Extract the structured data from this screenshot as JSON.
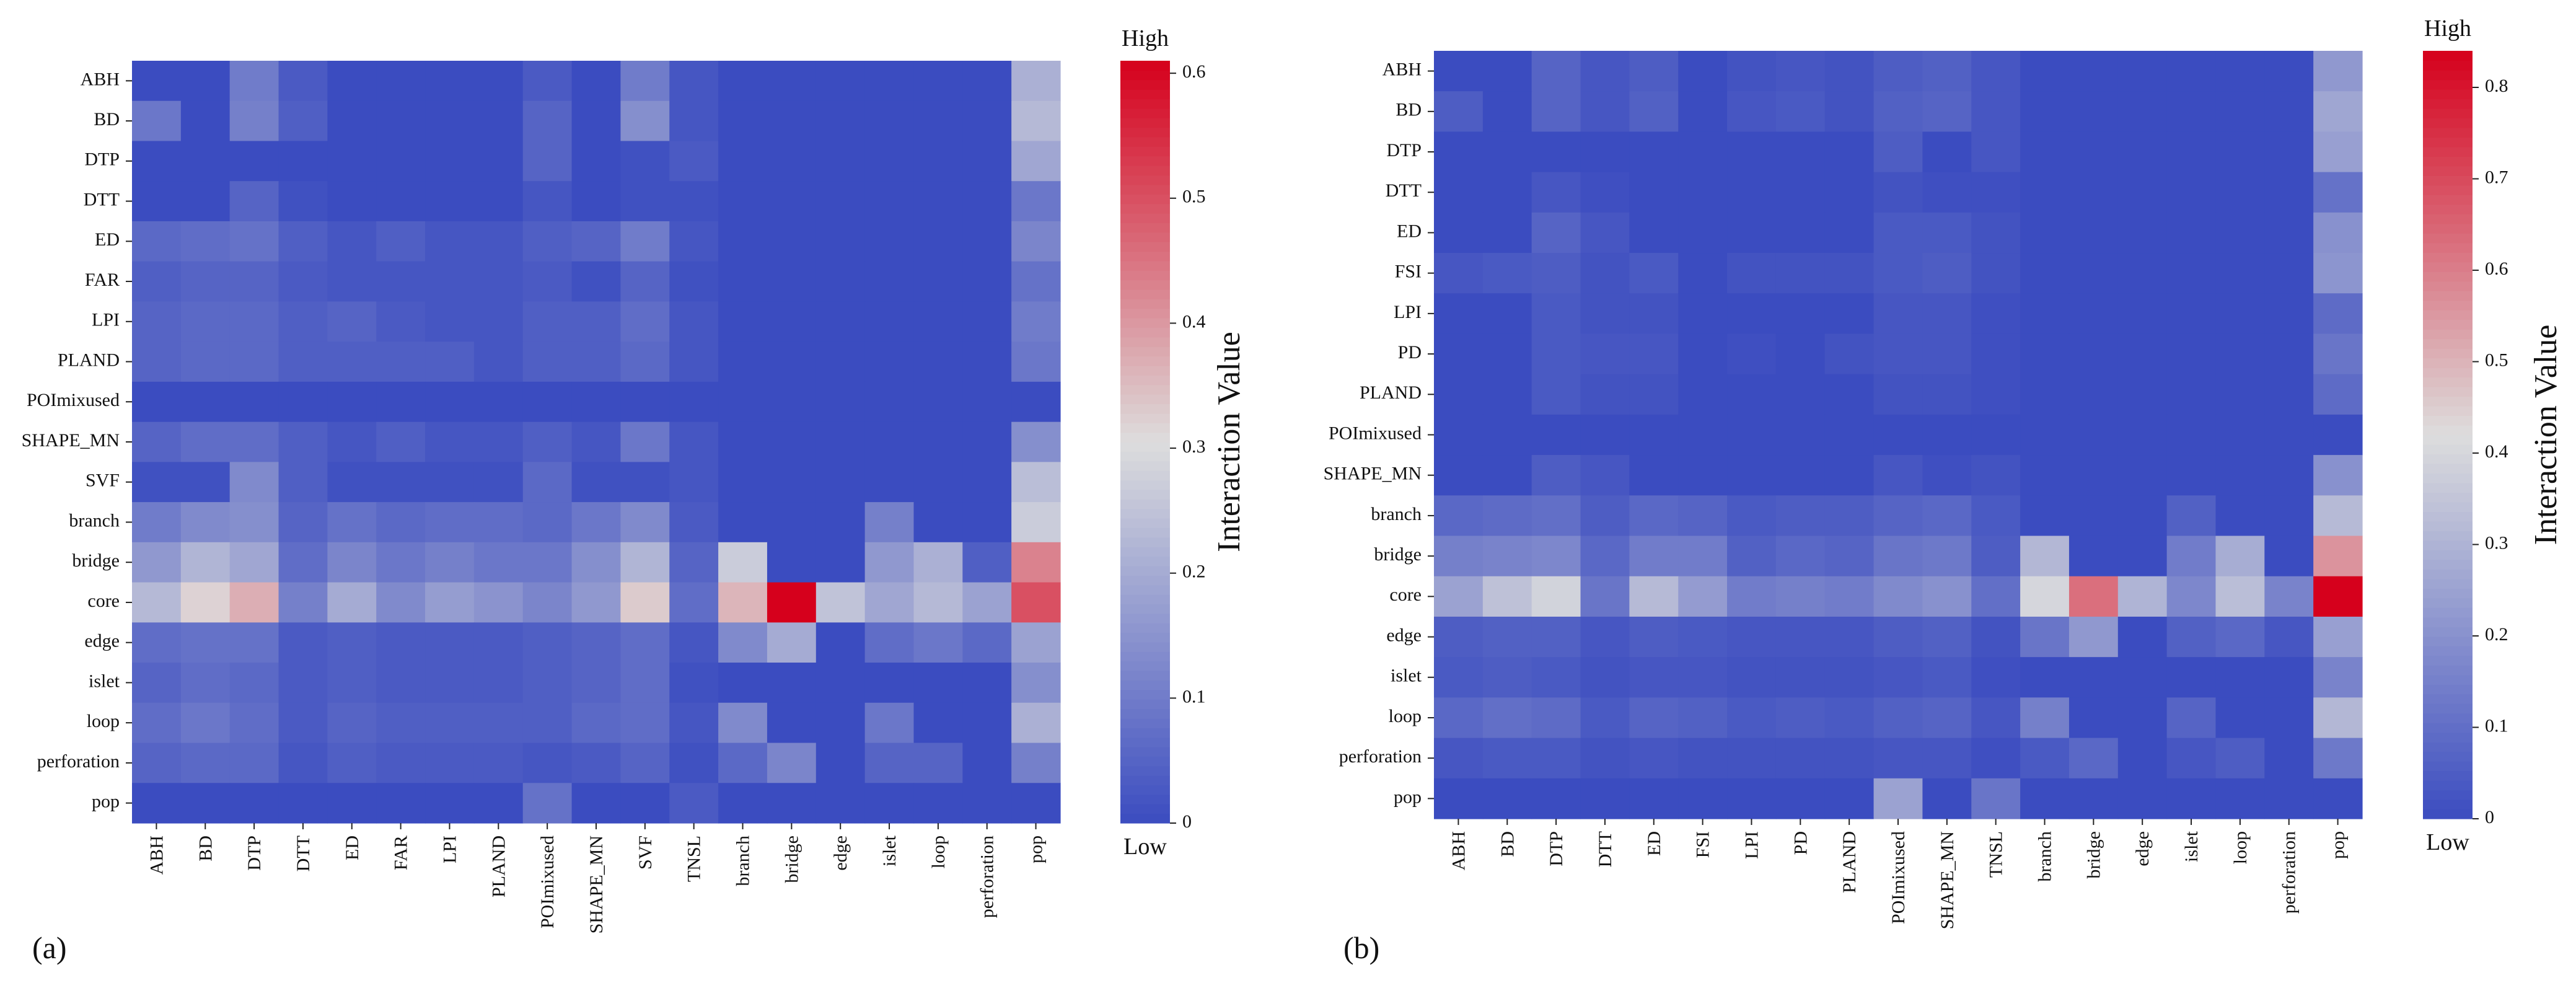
{
  "figure": {
    "panel_labels": [
      "(a)",
      "(b)"
    ]
  },
  "colors": {
    "low": "#3b4cc0",
    "mid": "#dddddd",
    "high": "#d6001c"
  },
  "chart_data": [
    {
      "type": "heatmap",
      "panel": "(a)",
      "rows": [
        "ABH",
        "BD",
        "DTP",
        "DTT",
        "ED",
        "FAR",
        "LPI",
        "PLAND",
        "POImixused",
        "SHAPE_MN",
        "SVF",
        "branch",
        "bridge",
        "core",
        "edge",
        "islet",
        "loop",
        "perforation",
        "pop"
      ],
      "columns": [
        "ABH",
        "BD",
        "DTP",
        "DTT",
        "ED",
        "FAR",
        "LPI",
        "PLAND",
        "POImixused",
        "SHAPE_MN",
        "SVF",
        "TNSL",
        "branch",
        "bridge",
        "edge",
        "islet",
        "loop",
        "perforation",
        "pop"
      ],
      "values": [
        [
          0,
          0,
          0.1,
          0.03,
          0,
          0,
          0,
          0,
          0.03,
          0,
          0.1,
          0.02,
          0,
          0,
          0,
          0,
          0,
          0,
          0.21
        ],
        [
          0.09,
          0,
          0.11,
          0.04,
          0,
          0,
          0,
          0,
          0.05,
          0,
          0.14,
          0.02,
          0,
          0,
          0,
          0,
          0,
          0,
          0.23
        ],
        [
          0,
          0,
          0,
          0,
          0,
          0,
          0,
          0,
          0.05,
          0,
          0.01,
          0.03,
          0,
          0,
          0,
          0,
          0,
          0,
          0.19
        ],
        [
          0,
          0,
          0.05,
          0.01,
          0,
          0,
          0,
          0,
          0.02,
          0,
          0.01,
          0.01,
          0,
          0,
          0,
          0,
          0,
          0,
          0.09
        ],
        [
          0.06,
          0.07,
          0.08,
          0.04,
          0.02,
          0.04,
          0.02,
          0.02,
          0.04,
          0.05,
          0.1,
          0.02,
          0,
          0,
          0,
          0,
          0,
          0,
          0.12
        ],
        [
          0.04,
          0.05,
          0.05,
          0.03,
          0.02,
          0.02,
          0.02,
          0.02,
          0.03,
          0.01,
          0.05,
          0.01,
          0,
          0,
          0,
          0,
          0,
          0,
          0.08
        ],
        [
          0.05,
          0.06,
          0.06,
          0.04,
          0.05,
          0.03,
          0.02,
          0.02,
          0.04,
          0.04,
          0.07,
          0.02,
          0,
          0,
          0,
          0,
          0,
          0,
          0.1
        ],
        [
          0.05,
          0.06,
          0.06,
          0.04,
          0.04,
          0.04,
          0.04,
          0.02,
          0.04,
          0.04,
          0.06,
          0.02,
          0,
          0,
          0,
          0,
          0,
          0,
          0.09
        ],
        [
          0,
          0,
          0,
          0,
          0,
          0,
          0,
          0,
          0,
          0,
          0,
          0,
          0,
          0,
          0,
          0,
          0,
          0,
          0
        ],
        [
          0.05,
          0.07,
          0.07,
          0.04,
          0.02,
          0.04,
          0.02,
          0.02,
          0.04,
          0.02,
          0.09,
          0.02,
          0,
          0,
          0,
          0,
          0,
          0,
          0.14
        ],
        [
          0.01,
          0.01,
          0.13,
          0.04,
          0.01,
          0.01,
          0.01,
          0.01,
          0.06,
          0.01,
          0.01,
          0.02,
          0,
          0,
          0,
          0,
          0,
          0,
          0.24
        ],
        [
          0.1,
          0.13,
          0.14,
          0.05,
          0.08,
          0.06,
          0.07,
          0.07,
          0.06,
          0.09,
          0.13,
          0.03,
          0,
          0,
          0,
          0.11,
          0,
          0,
          0.27
        ],
        [
          0.16,
          0.22,
          0.19,
          0.07,
          0.12,
          0.09,
          0.11,
          0.09,
          0.09,
          0.14,
          0.22,
          0.05,
          0.27,
          0,
          0,
          0.16,
          0.21,
          0.04,
          0.43
        ],
        [
          0.23,
          0.32,
          0.37,
          0.11,
          0.2,
          0.13,
          0.17,
          0.15,
          0.12,
          0.16,
          0.33,
          0.07,
          0.36,
          0.61,
          0.25,
          0.19,
          0.23,
          0.18,
          0.5
        ],
        [
          0.07,
          0.08,
          0.08,
          0.03,
          0.04,
          0.03,
          0.03,
          0.03,
          0.04,
          0.05,
          0.07,
          0.02,
          0.13,
          0.2,
          0,
          0.07,
          0.09,
          0.06,
          0.18
        ],
        [
          0.05,
          0.07,
          0.06,
          0.03,
          0.04,
          0.03,
          0.03,
          0.03,
          0.04,
          0.05,
          0.07,
          0.01,
          0,
          0,
          0,
          0,
          0,
          0,
          0.14
        ],
        [
          0.07,
          0.09,
          0.07,
          0.03,
          0.05,
          0.04,
          0.04,
          0.04,
          0.04,
          0.06,
          0.07,
          0.02,
          0.13,
          0,
          0,
          0.09,
          0,
          0,
          0.21
        ],
        [
          0.05,
          0.06,
          0.06,
          0.02,
          0.04,
          0.03,
          0.03,
          0.03,
          0.02,
          0.03,
          0.05,
          0.01,
          0.06,
          0.12,
          0,
          0.05,
          0.05,
          0,
          0.11
        ],
        [
          0,
          0,
          0,
          0,
          0,
          0,
          0,
          0,
          0.08,
          0,
          0,
          0.03,
          0,
          0,
          0,
          0,
          0,
          0,
          0
        ]
      ],
      "vmin": 0,
      "vmax": 0.61,
      "colorbar": {
        "ticks": [
          0,
          0.1,
          0.2,
          0.3,
          0.4,
          0.5,
          0.6
        ],
        "tick_labels": [
          "0",
          "0.1",
          "0.2",
          "0.3",
          "0.4",
          "0.5",
          "0.6"
        ],
        "label": "Interaction Value",
        "top_label": "High",
        "bottom_label": "Low"
      }
    },
    {
      "type": "heatmap",
      "panel": "(b)",
      "rows": [
        "ABH",
        "BD",
        "DTP",
        "DTT",
        "ED",
        "FSI",
        "LPI",
        "PD",
        "PLAND",
        "POImixused",
        "SHAPE_MN",
        "branch",
        "bridge",
        "core",
        "edge",
        "islet",
        "loop",
        "perforation",
        "pop"
      ],
      "columns": [
        "ABH",
        "BD",
        "DTP",
        "DTT",
        "ED",
        "FSI",
        "LPI",
        "PD",
        "PLAND",
        "POImixused",
        "SHAPE_MN",
        "TNSL",
        "branch",
        "bridge",
        "edge",
        "islet",
        "loop",
        "perforation",
        "pop"
      ],
      "values": [
        [
          0,
          0,
          0.07,
          0.03,
          0.05,
          0,
          0.02,
          0.03,
          0.02,
          0.05,
          0.06,
          0.03,
          0,
          0,
          0,
          0,
          0,
          0,
          0.22
        ],
        [
          0.05,
          0,
          0.07,
          0.03,
          0.06,
          0,
          0.03,
          0.04,
          0.02,
          0.06,
          0.07,
          0.03,
          0,
          0,
          0,
          0,
          0,
          0,
          0.26
        ],
        [
          0,
          0,
          0,
          0,
          0,
          0,
          0,
          0,
          0,
          0.05,
          0,
          0.03,
          0,
          0,
          0,
          0,
          0,
          0,
          0.24
        ],
        [
          0,
          0,
          0.03,
          0.01,
          0,
          0,
          0,
          0,
          0,
          0.02,
          0.01,
          0.01,
          0,
          0,
          0,
          0,
          0,
          0,
          0.11
        ],
        [
          0,
          0,
          0.07,
          0.03,
          0,
          0,
          0,
          0,
          0,
          0.04,
          0.04,
          0.02,
          0,
          0,
          0,
          0,
          0,
          0,
          0.2
        ],
        [
          0.03,
          0.04,
          0.05,
          0.02,
          0.04,
          0,
          0.02,
          0.02,
          0.02,
          0.04,
          0.05,
          0.02,
          0,
          0,
          0,
          0,
          0,
          0,
          0.21
        ],
        [
          0,
          0,
          0.04,
          0.02,
          0.02,
          0,
          0,
          0,
          0,
          0.03,
          0.03,
          0.01,
          0,
          0,
          0,
          0,
          0,
          0,
          0.09
        ],
        [
          0,
          0,
          0.04,
          0.03,
          0.03,
          0,
          0.01,
          0,
          0.02,
          0.03,
          0.03,
          0.01,
          0,
          0,
          0,
          0,
          0,
          0,
          0.12
        ],
        [
          0,
          0,
          0.04,
          0.02,
          0.02,
          0,
          0,
          0,
          0,
          0.02,
          0.02,
          0.01,
          0,
          0,
          0,
          0,
          0,
          0,
          0.09
        ],
        [
          0,
          0,
          0,
          0,
          0,
          0,
          0,
          0,
          0,
          0,
          0,
          0,
          0,
          0,
          0,
          0,
          0,
          0,
          0
        ],
        [
          0,
          0,
          0.05,
          0.03,
          0,
          0,
          0,
          0,
          0,
          0.03,
          0.01,
          0.02,
          0,
          0,
          0,
          0,
          0,
          0,
          0.2
        ],
        [
          0.08,
          0.09,
          0.1,
          0.05,
          0.08,
          0.07,
          0.04,
          0.05,
          0.05,
          0.07,
          0.08,
          0.04,
          0,
          0,
          0,
          0.06,
          0,
          0,
          0.32
        ],
        [
          0.15,
          0.16,
          0.17,
          0.08,
          0.14,
          0.14,
          0.06,
          0.08,
          0.07,
          0.12,
          0.13,
          0.05,
          0.31,
          0,
          0,
          0.14,
          0.28,
          0,
          0.56
        ],
        [
          0.25,
          0.34,
          0.39,
          0.12,
          0.32,
          0.23,
          0.14,
          0.15,
          0.14,
          0.18,
          0.2,
          0.1,
          0.4,
          0.63,
          0.3,
          0.17,
          0.33,
          0.16,
          0.84
        ],
        [
          0.05,
          0.06,
          0.06,
          0.03,
          0.05,
          0.04,
          0.03,
          0.03,
          0.03,
          0.05,
          0.06,
          0.02,
          0.12,
          0.22,
          0,
          0.06,
          0.08,
          0.03,
          0.24
        ],
        [
          0.04,
          0.05,
          0.04,
          0.02,
          0.03,
          0.03,
          0.02,
          0.02,
          0.02,
          0.03,
          0.04,
          0.01,
          0,
          0,
          0,
          0,
          0,
          0,
          0.16
        ],
        [
          0.08,
          0.1,
          0.09,
          0.04,
          0.07,
          0.06,
          0.04,
          0.05,
          0.04,
          0.06,
          0.07,
          0.03,
          0.15,
          0,
          0,
          0.07,
          0,
          0,
          0.31
        ],
        [
          0.03,
          0.04,
          0.04,
          0.02,
          0.03,
          0.02,
          0.02,
          0.02,
          0.02,
          0.03,
          0.03,
          0.01,
          0.04,
          0.08,
          0,
          0.03,
          0.05,
          0,
          0.13
        ],
        [
          0,
          0,
          0,
          0,
          0,
          0,
          0,
          0,
          0,
          0.25,
          0,
          0.12,
          0,
          0,
          0,
          0,
          0,
          0,
          0
        ]
      ],
      "vmin": 0,
      "vmax": 0.84,
      "colorbar": {
        "ticks": [
          0,
          0.1,
          0.2,
          0.3,
          0.4,
          0.5,
          0.6,
          0.7,
          0.8
        ],
        "tick_labels": [
          "0",
          "0.1",
          "0.2",
          "0.3",
          "0.4",
          "0.5",
          "0.6",
          "0.7",
          "0.8"
        ],
        "label": "Interaction Value",
        "top_label": "High",
        "bottom_label": "Low"
      }
    }
  ]
}
